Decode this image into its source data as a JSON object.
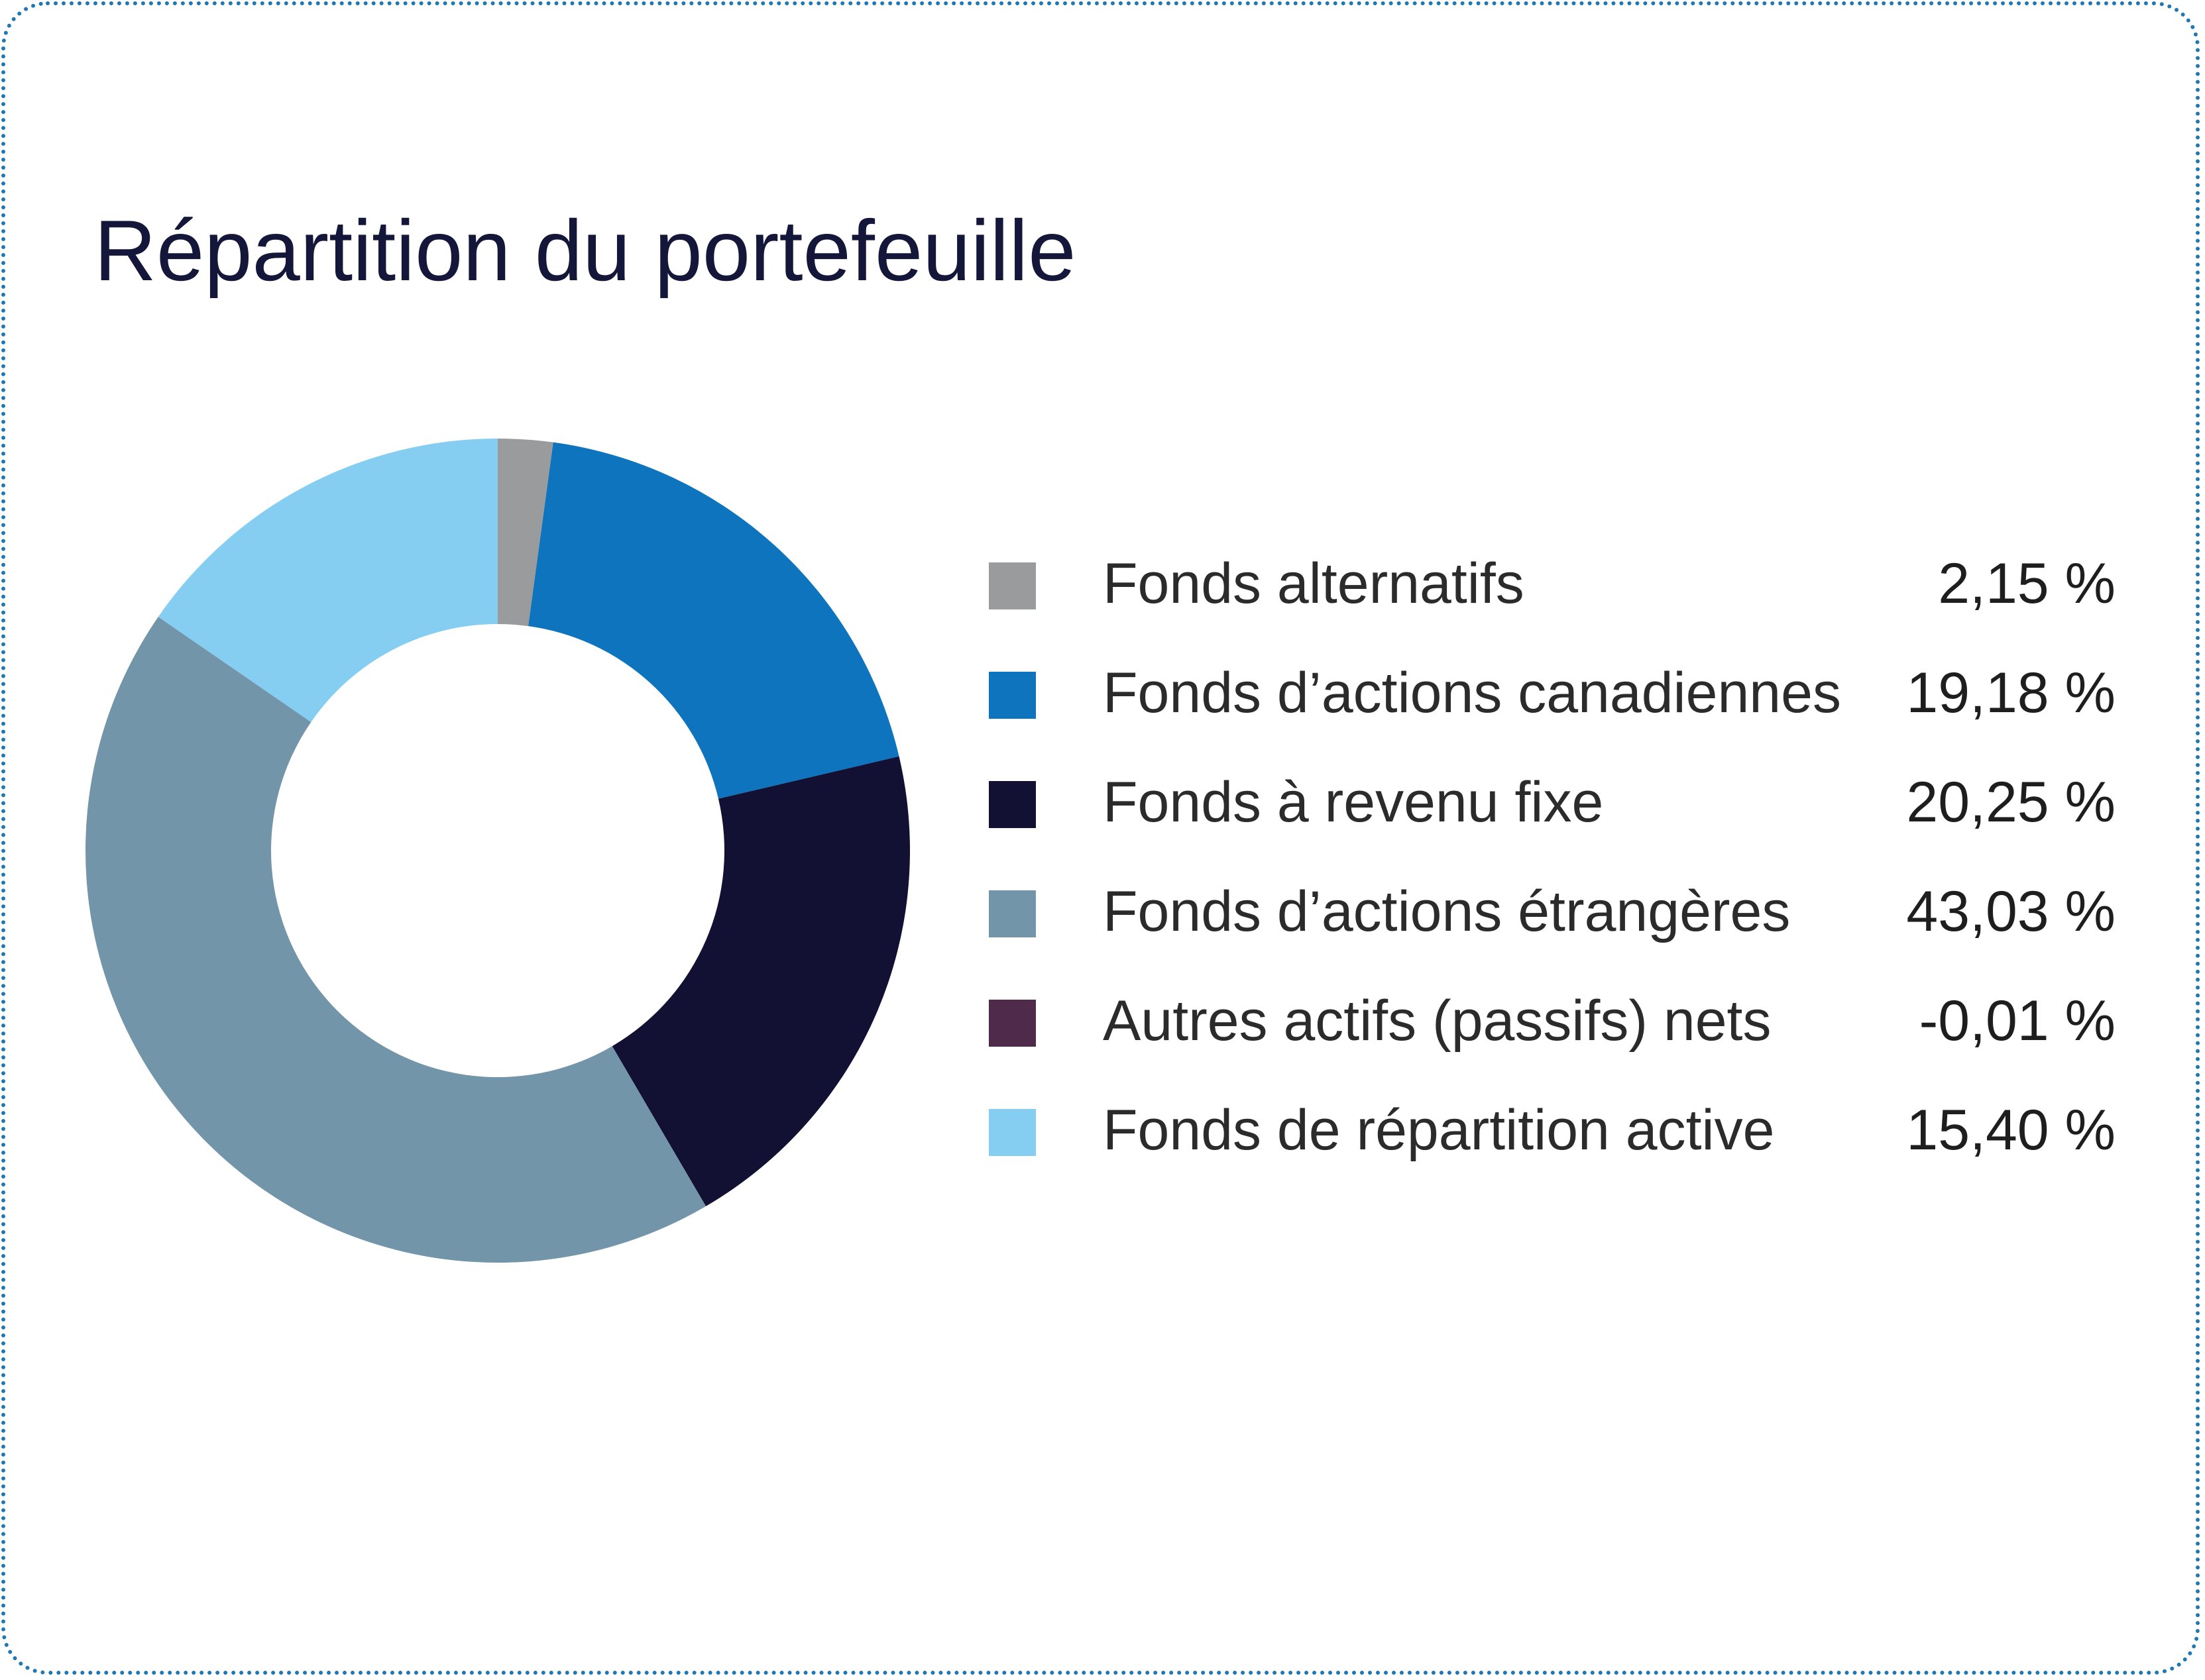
{
  "chart_data": {
    "type": "pie",
    "variant": "donut",
    "title": "Répartition du portefeuille",
    "categories": [
      "Fonds alternatifs",
      "Fonds d’actions canadiennes",
      "Fonds à revenu fixe",
      "Fonds d’actions étrangères",
      "Autres actifs (passifs) nets",
      "Fonds de répartition active"
    ],
    "values": [
      2.15,
      19.18,
      20.25,
      43.03,
      -0.01,
      15.4
    ],
    "value_labels": [
      "2,15 %",
      "19,18 %",
      "20,25 %",
      "43,03 %",
      "-0,01 %",
      "15,40 %"
    ],
    "colors": [
      "#9a9b9d",
      "#0f74be",
      "#121133",
      "#7395a9",
      "#4f2a4a",
      "#86cdf2"
    ],
    "legend_position": "right"
  }
}
